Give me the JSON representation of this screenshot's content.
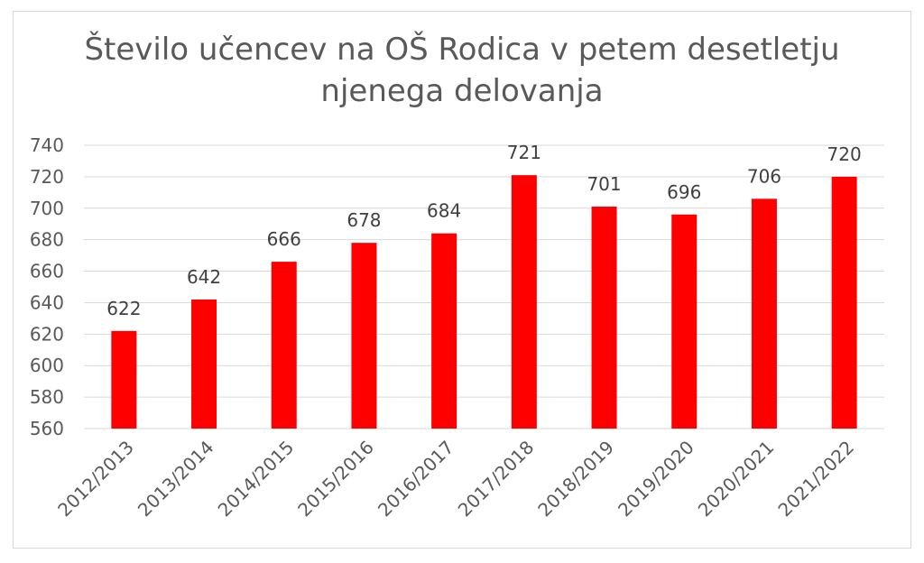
{
  "chart_data": {
    "type": "bar",
    "title_lines": [
      "Število učencev na OŠ Rodica v petem desetletju",
      "njenega delovanja"
    ],
    "categories": [
      "2012/2013",
      "2013/2014",
      "2014/2015",
      "2015/2016",
      "2016/2017",
      "2017/2018",
      "2018/2019",
      "2019/2020",
      "2020/2021",
      "2021/2022"
    ],
    "values": [
      622,
      642,
      666,
      678,
      684,
      721,
      701,
      696,
      706,
      720
    ],
    "ylim": [
      560,
      740
    ],
    "yticks": [
      560,
      580,
      600,
      620,
      640,
      660,
      680,
      700,
      720,
      740
    ],
    "grid": true,
    "bar_color": "#ff0000",
    "data_labels": true
  }
}
